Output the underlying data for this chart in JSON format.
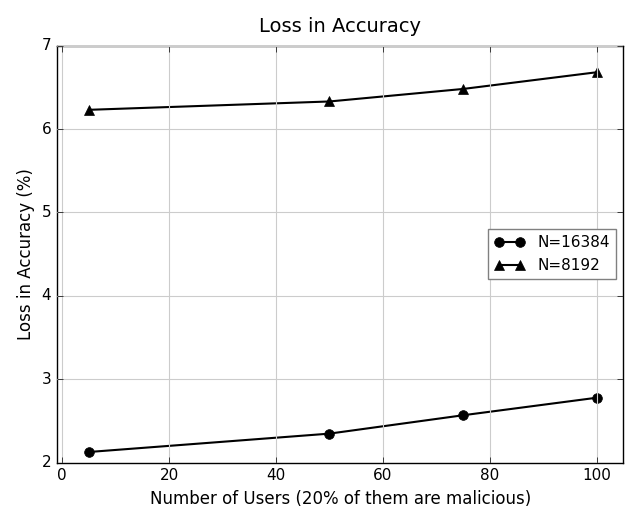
{
  "title": "Loss in Accuracy",
  "xlabel": "Number of Users (20% of them are malicious)",
  "ylabel": "Loss in Accuracy (%)",
  "series": [
    {
      "label": "N=16384",
      "x": [
        5,
        50,
        75,
        100
      ],
      "y": [
        2.13,
        2.35,
        2.57,
        2.78
      ],
      "marker": "o",
      "color": "black",
      "linewidth": 1.5
    },
    {
      "label": "N=8192",
      "x": [
        5,
        50,
        75,
        100
      ],
      "y": [
        6.23,
        6.33,
        6.48,
        6.68
      ],
      "marker": "^",
      "color": "black",
      "linewidth": 1.5
    }
  ],
  "xlim": [
    -1,
    105
  ],
  "ylim": [
    2.0,
    7.0
  ],
  "xticks": [
    0,
    20,
    40,
    60,
    80,
    100
  ],
  "yticks": [
    2,
    3,
    4,
    5,
    6,
    7
  ],
  "legend_loc": "center right",
  "grid": true,
  "plot_bg_color": "#ffffff",
  "fig_bg_color": "#ffffff",
  "grid_color": "#cccccc",
  "title_fontsize": 14,
  "label_fontsize": 12,
  "tick_fontsize": 11,
  "legend_fontsize": 11,
  "markersize": 7
}
